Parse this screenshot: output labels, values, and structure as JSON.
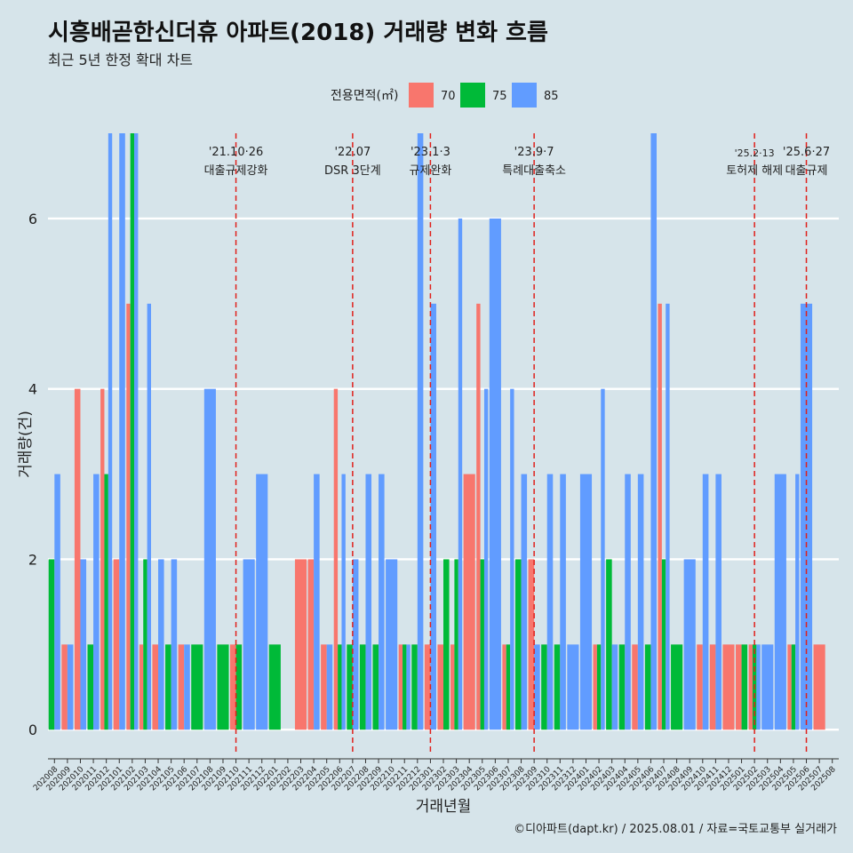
{
  "chart_data": {
    "type": "bar",
    "title": "시흥배곧한신더휴 아파트(2018) 거래량 변화 흐름",
    "subtitle": "최근 5년 한정 확대 차트",
    "xlabel": "거래년월",
    "ylabel": "거래량(건)",
    "caption": "©디아파트(dapt.kr) / 2025.08.01 / 자료=국토교통부 실거래가",
    "legend_title": "전용면적(㎡)",
    "legend_position": "top",
    "ylim": [
      -0.3,
      7.0
    ],
    "yticks": [
      0,
      2,
      4,
      6
    ],
    "grid": true,
    "categories": [
      "202008",
      "202009",
      "202010",
      "202011",
      "202012",
      "202101",
      "202102",
      "202103",
      "202104",
      "202105",
      "202106",
      "202107",
      "202108",
      "202109",
      "202110",
      "202111",
      "202112",
      "202201",
      "202202",
      "202203",
      "202204",
      "202205",
      "202206",
      "202207",
      "202208",
      "202209",
      "202210",
      "202211",
      "202212",
      "202301",
      "202302",
      "202303",
      "202304",
      "202305",
      "202306",
      "202307",
      "202308",
      "202309",
      "202310",
      "202311",
      "202312",
      "202401",
      "202402",
      "202403",
      "202404",
      "202405",
      "202406",
      "202407",
      "202408",
      "202409",
      "202410",
      "202411",
      "202412",
      "202501",
      "202502",
      "202503",
      "202504",
      "202505",
      "202506",
      "202507",
      "202508"
    ],
    "series": [
      {
        "name": "70",
        "color": "#f8766d",
        "values": [
          0,
          1,
          4,
          0,
          4,
          2,
          5,
          1,
          1,
          0,
          1,
          0,
          0,
          0,
          1,
          0,
          0,
          0,
          0,
          2,
          2,
          1,
          4,
          0,
          0,
          0,
          0,
          1,
          0,
          1,
          1,
          1,
          3,
          5,
          0,
          1,
          0,
          2,
          0,
          0,
          0,
          0,
          1,
          0,
          0,
          1,
          0,
          5,
          0,
          0,
          1,
          1,
          1,
          1,
          1,
          0,
          0,
          1,
          0,
          1,
          0
        ]
      },
      {
        "name": "75",
        "color": "#00ba38",
        "values": [
          2,
          0,
          0,
          1,
          3,
          0,
          7,
          2,
          0,
          1,
          0,
          1,
          0,
          1,
          1,
          0,
          0,
          1,
          0,
          0,
          0,
          0,
          1,
          1,
          1,
          1,
          0,
          1,
          1,
          0,
          2,
          2,
          0,
          2,
          0,
          1,
          2,
          0,
          1,
          1,
          0,
          0,
          1,
          2,
          1,
          0,
          1,
          2,
          1,
          0,
          0,
          0,
          0,
          1,
          1,
          0,
          0,
          1,
          0,
          0,
          0
        ]
      },
      {
        "name": "85",
        "color": "#619cff",
        "values": [
          3,
          1,
          2,
          3,
          7,
          7,
          7,
          5,
          2,
          2,
          1,
          0,
          4,
          0,
          0,
          2,
          3,
          0,
          0,
          0,
          3,
          1,
          3,
          2,
          3,
          3,
          2,
          1,
          7,
          5,
          0,
          6,
          0,
          4,
          6,
          4,
          3,
          1,
          3,
          3,
          1,
          3,
          4,
          1,
          3,
          3,
          7,
          5,
          0,
          2,
          3,
          3,
          0,
          0,
          1,
          1,
          3,
          3,
          5,
          0,
          0
        ]
      }
    ],
    "annotations": [
      {
        "at": "202110",
        "date": "'21.10·26",
        "label": "대출규제강화"
      },
      {
        "at": "202207",
        "date": "'22.07",
        "label": "DSR 3단계"
      },
      {
        "at": "202301",
        "date": "'23.1·3",
        "label": "규제완화"
      },
      {
        "at": "202309",
        "date": "'23.9·7",
        "label": "특례대출축소"
      },
      {
        "at": "202502",
        "date": "'25.2·13",
        "label": "토허제 해제"
      },
      {
        "at": "202506",
        "date": "'25.6·27",
        "label": "대출규제"
      }
    ]
  }
}
